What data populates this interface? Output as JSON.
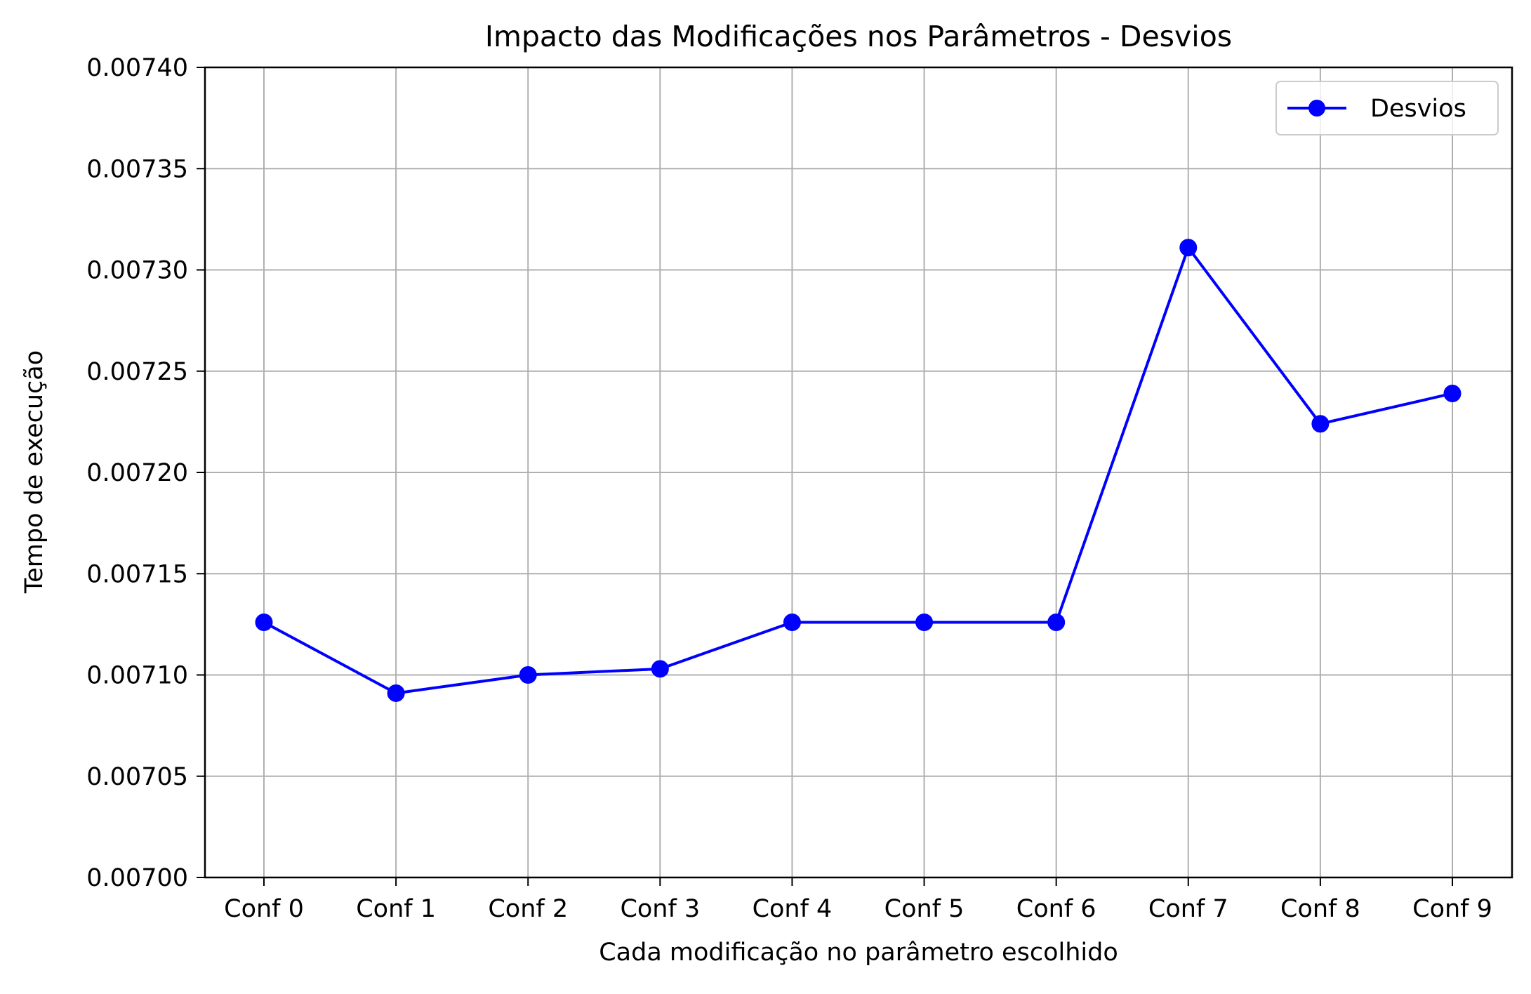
{
  "chart_data": {
    "type": "line",
    "title": "Impacto das Modificações nos Parâmetros - Desvios",
    "xlabel": "Cada modificação no parâmetro escolhido",
    "ylabel": "Tempo de execução",
    "categories": [
      "Conf 0",
      "Conf 1",
      "Conf 2",
      "Conf 3",
      "Conf 4",
      "Conf 5",
      "Conf 6",
      "Conf 7",
      "Conf 8",
      "Conf 9"
    ],
    "series": [
      {
        "name": "Desvios",
        "color": "#0000ff",
        "marker": "circle",
        "values": [
          0.007126,
          0.007091,
          0.0071,
          0.007103,
          0.007126,
          0.007126,
          0.007126,
          0.007311,
          0.007224,
          0.007239
        ]
      }
    ],
    "ylim": [
      0.007,
      0.0074
    ],
    "yticks": [
      "0.00700",
      "0.00705",
      "0.00710",
      "0.00715",
      "0.00720",
      "0.00725",
      "0.00730",
      "0.00735",
      "0.00740"
    ],
    "grid": true,
    "grid_color": "#b0b0b0",
    "legend_position": "top-right"
  }
}
